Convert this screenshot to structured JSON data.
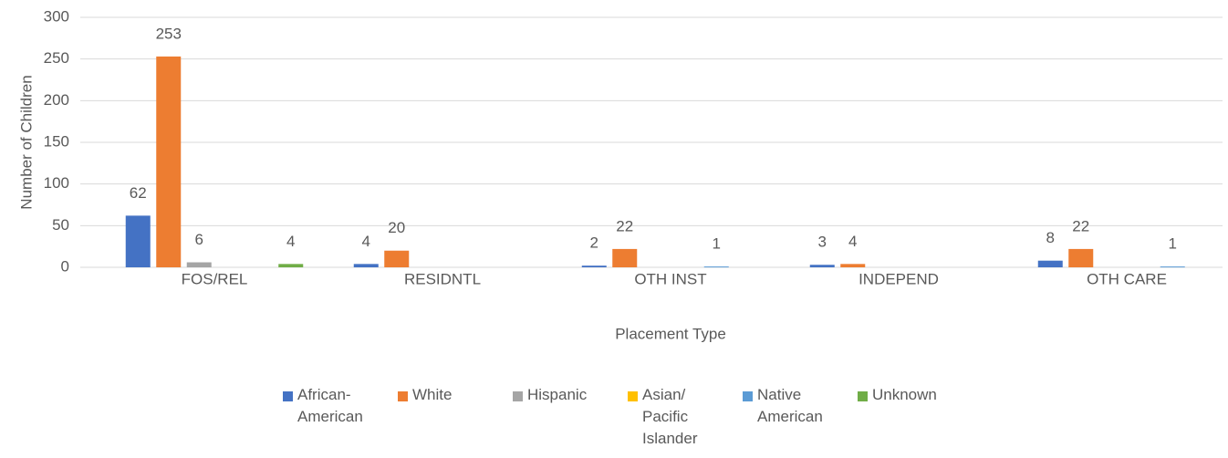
{
  "chart_data": {
    "type": "bar",
    "x_label": "Placement Type",
    "y_label": "Number of Children",
    "categories": [
      "FOS/REL",
      "RESIDNTL",
      "OTH INST",
      "INDEPEND",
      "OTH CARE"
    ],
    "series": [
      {
        "name": "African-American",
        "color": "#4472c4",
        "values": [
          62,
          4,
          2,
          3,
          8
        ]
      },
      {
        "name": "White",
        "color": "#ed7d31",
        "values": [
          253,
          20,
          22,
          4,
          22
        ]
      },
      {
        "name": "Hispanic",
        "color": "#a5a5a5",
        "values": [
          6,
          null,
          null,
          null,
          null
        ]
      },
      {
        "name": "Asian/ Pacific Islander",
        "color": "#ffc000",
        "values": [
          null,
          null,
          null,
          null,
          null
        ]
      },
      {
        "name": "Native American",
        "color": "#5b9bd5",
        "values": [
          null,
          null,
          1,
          null,
          1
        ]
      },
      {
        "name": "Unknown",
        "color": "#70ad47",
        "values": [
          4,
          null,
          null,
          null,
          null
        ]
      }
    ],
    "ylim": [
      0,
      300
    ],
    "yticks": [
      0,
      50,
      100,
      150,
      200,
      250,
      300
    ],
    "grid": true,
    "legend": "bottom"
  }
}
